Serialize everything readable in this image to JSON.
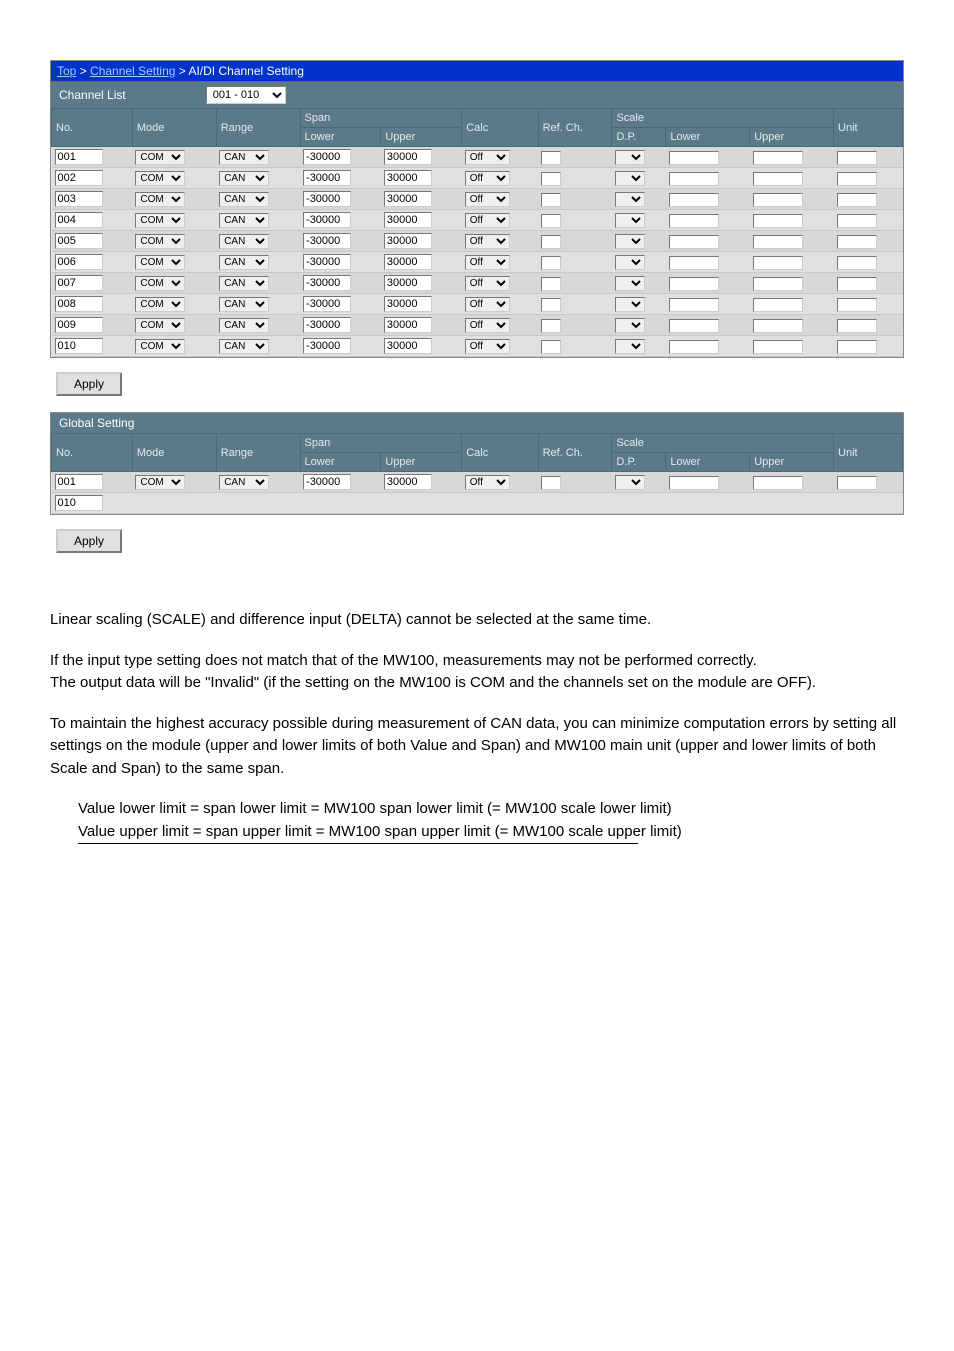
{
  "breadcrumb": {
    "top": "Top",
    "mid": "Channel Setting",
    "last": "AI/DI Channel Setting"
  },
  "channelListLabel": "Channel List",
  "rangeSelect": "001 - 010",
  "headers": {
    "no": "No.",
    "mode": "Mode",
    "range": "Range",
    "span": "Span",
    "lower": "Lower",
    "upper": "Upper",
    "calc": "Calc",
    "refch": "Ref. Ch.",
    "scale": "Scale",
    "dp": "D.P.",
    "slower": "Lower",
    "supper": "Upper",
    "unit": "Unit"
  },
  "rows": [
    {
      "no": "001",
      "mode": "COM",
      "range": "CAN",
      "lower": "-30000",
      "upper": "30000",
      "calc": "Off"
    },
    {
      "no": "002",
      "mode": "COM",
      "range": "CAN",
      "lower": "-30000",
      "upper": "30000",
      "calc": "Off"
    },
    {
      "no": "003",
      "mode": "COM",
      "range": "CAN",
      "lower": "-30000",
      "upper": "30000",
      "calc": "Off"
    },
    {
      "no": "004",
      "mode": "COM",
      "range": "CAN",
      "lower": "-30000",
      "upper": "30000",
      "calc": "Off"
    },
    {
      "no": "005",
      "mode": "COM",
      "range": "CAN",
      "lower": "-30000",
      "upper": "30000",
      "calc": "Off"
    },
    {
      "no": "006",
      "mode": "COM",
      "range": "CAN",
      "lower": "-30000",
      "upper": "30000",
      "calc": "Off"
    },
    {
      "no": "007",
      "mode": "COM",
      "range": "CAN",
      "lower": "-30000",
      "upper": "30000",
      "calc": "Off"
    },
    {
      "no": "008",
      "mode": "COM",
      "range": "CAN",
      "lower": "-30000",
      "upper": "30000",
      "calc": "Off"
    },
    {
      "no": "009",
      "mode": "COM",
      "range": "CAN",
      "lower": "-30000",
      "upper": "30000",
      "calc": "Off"
    },
    {
      "no": "010",
      "mode": "COM",
      "range": "CAN",
      "lower": "-30000",
      "upper": "30000",
      "calc": "Off"
    }
  ],
  "applyLabel": "Apply",
  "globalSettingLabel": "Global Setting",
  "grows": [
    {
      "no": "001",
      "mode": "COM",
      "range": "CAN",
      "lower": "-30000",
      "upper": "30000",
      "calc": "Off"
    },
    {
      "no": "010",
      "mode": "",
      "range": "",
      "lower": "",
      "upper": "",
      "calc": ""
    }
  ],
  "paragraphs": {
    "p1": "Linear scaling (SCALE) and difference input (DELTA) cannot be selected at the same time.",
    "p2a": "If the input type setting does not match that of the MW100, measurements may not be performed correctly.",
    "p2b": "The output data will be \"Invalid\" (if the setting on the MW100 is COM and the channels set on the module are OFF).",
    "p3": "To maintain the highest accuracy possible during measurement of CAN data, you can minimize computation errors by setting all settings on the module (upper and lower limits of both Value and Span) and MW100 main unit (upper and lower limits of both Scale and Span) to the same span.",
    "p4": "Value lower limit = span lower limit = MW100 span lower limit (= MW100 scale lower limit)",
    "p5": "Value upper limit = span upper limit = MW100 span upper limit (= MW100 scale upper limit)"
  }
}
